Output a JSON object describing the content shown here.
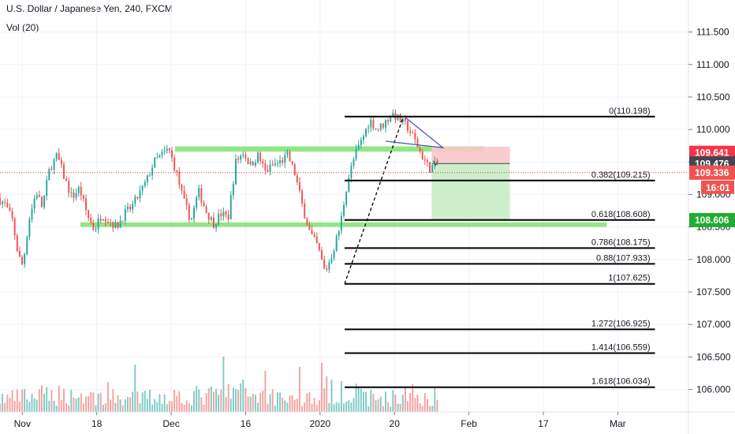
{
  "header": {
    "title": "U.S. Dollar / Japanese Yen, 240, FXCM",
    "volume_label": "Vol (20)"
  },
  "colors": {
    "up": "#26a69a",
    "down": "#ef5350",
    "vol_up": "#7fcbc3",
    "vol_down": "#f5a2a0",
    "fib_line": "#000000",
    "sr_zone": "#7ee36f",
    "target_zone": "#c8ecc4",
    "stop_zone": "#f8c8c8",
    "price_line": "#e53935"
  },
  "chart_data": {
    "type": "candlestick",
    "symbol": "USDJPY",
    "timeframe": "240",
    "source": "FXCM",
    "ylim": [
      105.8,
      111.75
    ],
    "y_ticks": [
      "106.000",
      "106.500",
      "107.000",
      "107.500",
      "108.000",
      "108.500",
      "109.000",
      "109.500",
      "110.000",
      "110.500",
      "111.000",
      "111.500"
    ],
    "x_ticks": [
      "Nov",
      "18",
      "Dec",
      "16",
      "2020",
      "20",
      "Feb",
      "17",
      "Mar"
    ],
    "x_tick_positions": [
      3,
      13,
      23,
      33,
      43,
      53,
      63,
      73,
      83
    ],
    "x_range": [
      0,
      92.5
    ],
    "price_path": [
      [
        0,
        108.95
      ],
      [
        1,
        108.85
      ],
      [
        2,
        108.6
      ],
      [
        2.8,
        108.05
      ],
      [
        3.4,
        107.9
      ],
      [
        4.2,
        108.6
      ],
      [
        5.2,
        109.05
      ],
      [
        6,
        108.8
      ],
      [
        7,
        109.4
      ],
      [
        8,
        109.6
      ],
      [
        9,
        109.25
      ],
      [
        10,
        108.95
      ],
      [
        11,
        109.1
      ],
      [
        12,
        108.7
      ],
      [
        13,
        108.45
      ],
      [
        14,
        108.7
      ],
      [
        15,
        108.6
      ],
      [
        16,
        108.5
      ],
      [
        17,
        108.7
      ],
      [
        18,
        108.8
      ],
      [
        19,
        109.0
      ],
      [
        20,
        109.2
      ],
      [
        21,
        109.5
      ],
      [
        22,
        109.6
      ],
      [
        23,
        109.7
      ],
      [
        24,
        109.35
      ],
      [
        25,
        108.9
      ],
      [
        26,
        108.6
      ],
      [
        27,
        109.05
      ],
      [
        28,
        108.75
      ],
      [
        29,
        108.55
      ],
      [
        30,
        108.7
      ],
      [
        31,
        108.65
      ],
      [
        32,
        109.5
      ],
      [
        33,
        109.65
      ],
      [
        34,
        109.45
      ],
      [
        35,
        109.6
      ],
      [
        36,
        109.35
      ],
      [
        37,
        109.45
      ],
      [
        38,
        109.5
      ],
      [
        39,
        109.6
      ],
      [
        40,
        109.3
      ],
      [
        41,
        108.8
      ],
      [
        42,
        108.4
      ],
      [
        43,
        108.2
      ],
      [
        44,
        107.8
      ],
      [
        45,
        108.1
      ],
      [
        46,
        108.5
      ],
      [
        47,
        109.2
      ],
      [
        48,
        109.6
      ],
      [
        49,
        109.85
      ],
      [
        50,
        110.15
      ],
      [
        51,
        110.0
      ],
      [
        52,
        110.1
      ],
      [
        53,
        110.25
      ],
      [
        54,
        110.15
      ],
      [
        55,
        110.05
      ],
      [
        56,
        109.85
      ],
      [
        57,
        109.6
      ],
      [
        58,
        109.4
      ],
      [
        58.8,
        109.45
      ]
    ],
    "volume_profile": [
      [
        0,
        1.0
      ],
      [
        3,
        1.1
      ],
      [
        8,
        1.3
      ],
      [
        13,
        1.1
      ],
      [
        18,
        1.0
      ],
      [
        23,
        1.2
      ],
      [
        28,
        1.2
      ],
      [
        32,
        1.6
      ],
      [
        35,
        1.3
      ],
      [
        39,
        1.1
      ],
      [
        43,
        1.0
      ],
      [
        46,
        1.9
      ],
      [
        47,
        1.2
      ],
      [
        52,
        1.0
      ],
      [
        56,
        1.2
      ],
      [
        58.8,
        1.1
      ]
    ],
    "fib_levels": [
      {
        "label": "0(110.198)",
        "price": 110.198
      },
      {
        "label": "0.382(109.215)",
        "price": 109.215
      },
      {
        "label": "0.618(108.608)",
        "price": 108.608
      },
      {
        "label": "0.786(108.175)",
        "price": 108.175
      },
      {
        "label": "0.88(107.933)",
        "price": 107.933
      },
      {
        "label": "1(107.625)",
        "price": 107.625
      },
      {
        "label": "1.272(106.925)",
        "price": 106.925
      },
      {
        "label": "1.414(106.559)",
        "price": 106.559
      },
      {
        "label": "1.618(106.034)",
        "price": 106.034
      }
    ],
    "fib_x_range": [
      46.3,
      88
    ],
    "sr_zones": [
      {
        "price_low": 109.66,
        "price_high": 109.74,
        "x_start": 23.5,
        "x_end": 65.0
      },
      {
        "price_low": 108.5,
        "price_high": 108.57,
        "x_start": 10.8,
        "x_end": 81.5
      }
    ],
    "position": {
      "entry": 109.476,
      "stop": 109.736,
      "target": 108.606,
      "x_start": 58.0,
      "x_end": 68.5
    },
    "current_price": 109.336,
    "countdown": "16:01",
    "price_labels": [
      {
        "text": "109.641",
        "price": 109.641,
        "color": "#f23645"
      },
      {
        "text": "109.476",
        "price": 109.476,
        "color": "#434651"
      },
      {
        "text": "109.336",
        "price": 109.336,
        "color": "#ef5350"
      },
      {
        "text": "108.606",
        "price": 108.606,
        "color": "#22ab30"
      }
    ]
  }
}
